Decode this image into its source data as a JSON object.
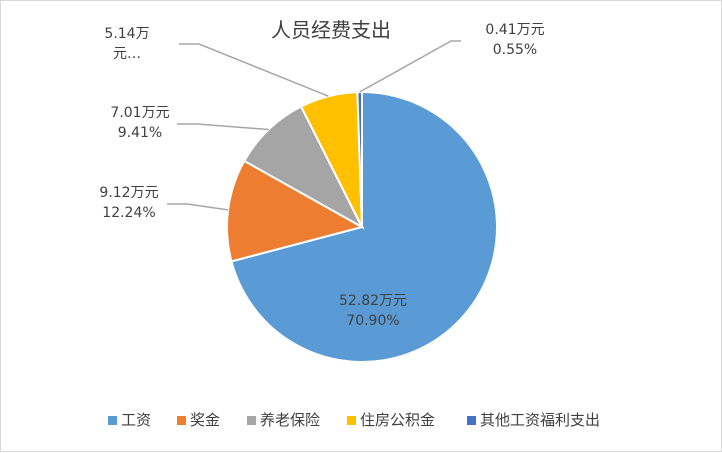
{
  "chart_data": {
    "type": "pie",
    "title": "人员经费支出",
    "categories": [
      "工资",
      "奖金",
      "养老保险",
      "住房公积金",
      "其他工资福利支出"
    ],
    "values": [
      52.82,
      9.12,
      7.01,
      5.14,
      0.41
    ],
    "percent": [
      70.9,
      12.24,
      9.41,
      6.9,
      0.55
    ],
    "colors": [
      "#5b9bd5",
      "#ed7d31",
      "#a5a5a5",
      "#ffc000",
      "#4472c4"
    ],
    "data_labels": [
      [
        "52.82万元",
        "70.90%"
      ],
      [
        "9.12万元",
        "12.24%"
      ],
      [
        "7.01万元",
        "9.41%"
      ],
      [
        "5.14万",
        "元…"
      ],
      [
        "0.41万元",
        "0.55%"
      ]
    ],
    "legend_position": "bottom"
  }
}
